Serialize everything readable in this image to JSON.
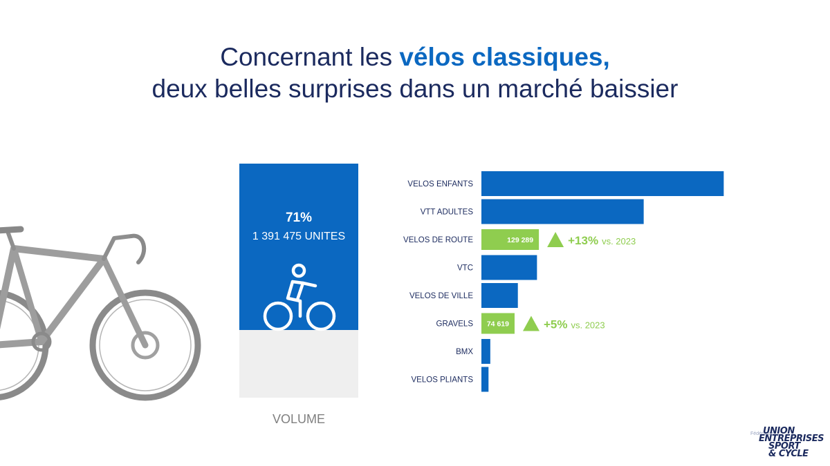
{
  "title": {
    "line1_prefix": "Concernant les ",
    "line1_highlight": "vélos classiques,",
    "line2": "deux belles surprises dans un marché baissier"
  },
  "volume_panel": {
    "share_label": "71%",
    "share_value": 71,
    "units": "1 391 475 UNITES",
    "label": "VOLUME",
    "icon": "cyclist-icon"
  },
  "chart_data": {
    "type": "bar",
    "orientation": "horizontal",
    "categories": [
      "VELOS ENFANTS",
      "VTT ADULTES",
      "VELOS DE ROUTE",
      "VTC",
      "VELOS DE VILLE",
      "GRAVELS",
      "BMX",
      "VELOS PLIANTS"
    ],
    "values": [
      545000,
      365000,
      129289,
      125000,
      82000,
      74619,
      20000,
      16000
    ],
    "data_labels": [
      "",
      "",
      "129 289",
      "",
      "",
      "74 619",
      "",
      ""
    ],
    "highlighted": [
      "VELOS DE ROUTE",
      "GRAVELS"
    ],
    "annotations": [
      {
        "category": "VELOS DE ROUTE",
        "change": "+13%",
        "suffix": "vs. 2023",
        "icon": "up-triangle-icon"
      },
      {
        "category": "GRAVELS",
        "change": "+5%",
        "suffix": "vs. 2023",
        "icon": "up-triangle-icon"
      }
    ],
    "xlim": [
      0,
      560000
    ],
    "grid": false,
    "colors": {
      "default": "#0b68c1",
      "highlight": "#8fcd4f"
    }
  },
  "logo": {
    "pre": "Fédération",
    "line1": "UNION",
    "line2": "ENTREPRISES",
    "line3": "SPORT",
    "line4": "& CYCLE"
  }
}
